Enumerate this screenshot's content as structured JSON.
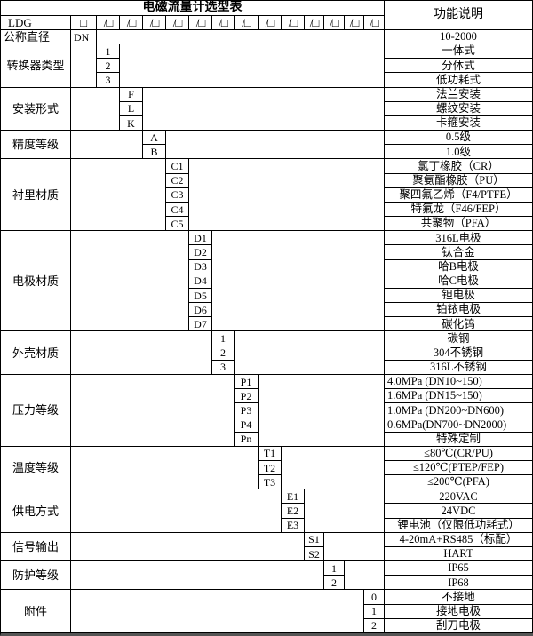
{
  "title": "电磁流量计选型表",
  "function_header": "功能说明",
  "header_row": {
    "model_prefix": "LDG",
    "box_glyph": "□",
    "slash_box_glyph": "/□",
    "slash_box_count": 13
  },
  "groups": [
    {
      "label": "公称直径",
      "label_align": "left",
      "code_col": 2,
      "options": [
        {
          "code": "DN",
          "code_align": "left",
          "desc": "10-2000"
        }
      ]
    },
    {
      "label": "转换器类型",
      "code_col": 3,
      "options": [
        {
          "code": "1",
          "desc": "一体式"
        },
        {
          "code": "2",
          "desc": "分体式"
        },
        {
          "code": "3",
          "desc": "低功耗式"
        }
      ]
    },
    {
      "label": "安装形式",
      "code_col": 4,
      "options": [
        {
          "code": "F",
          "desc": "法兰安装"
        },
        {
          "code": "L",
          "desc": "螺纹安装"
        },
        {
          "code": "K",
          "desc": "卡箍安装"
        }
      ]
    },
    {
      "label": "精度等级",
      "code_col": 5,
      "options": [
        {
          "code": "A",
          "desc": "0.5级"
        },
        {
          "code": "B",
          "desc": "1.0级"
        }
      ]
    },
    {
      "label": "衬里材质",
      "code_col": 6,
      "options": [
        {
          "code": "C1",
          "desc": "氯丁橡胶（CR）"
        },
        {
          "code": "C2",
          "desc": "聚氨酯橡胶（PU）"
        },
        {
          "code": "C3",
          "desc": "聚四氟乙烯（F4/PTFE）"
        },
        {
          "code": "C4",
          "desc": "特氟龙（F46/FEP）"
        },
        {
          "code": "C5",
          "desc": "共聚物（PFA）"
        }
      ]
    },
    {
      "label": "电极材质",
      "code_col": 7,
      "options": [
        {
          "code": "D1",
          "desc": "316L电极"
        },
        {
          "code": "D2",
          "desc": "钛合金"
        },
        {
          "code": "D3",
          "desc": "哈B电极"
        },
        {
          "code": "D4",
          "desc": "哈C电极"
        },
        {
          "code": "D5",
          "desc": "钽电极"
        },
        {
          "code": "D6",
          "desc": "铂铱电极"
        },
        {
          "code": "D7",
          "desc": "碳化钨"
        }
      ]
    },
    {
      "label": "外壳材质",
      "code_col": 8,
      "options": [
        {
          "code": "1",
          "desc": "碳钢"
        },
        {
          "code": "2",
          "desc": "304不锈钢"
        },
        {
          "code": "3",
          "desc": "316L不锈钢"
        }
      ]
    },
    {
      "label": "压力等级",
      "code_col": 9,
      "options": [
        {
          "code": "P1",
          "desc": "4.0MPa (DN10~150)",
          "align": "left"
        },
        {
          "code": "P2",
          "desc": "1.6MPa (DN15~150)",
          "align": "left"
        },
        {
          "code": "P3",
          "desc": "1.0MPa (DN200~DN600)",
          "align": "left"
        },
        {
          "code": "P4",
          "desc": "0.6MPa(DN700~DN2000)",
          "align": "left"
        },
        {
          "code": "Pn",
          "desc": "特殊定制"
        }
      ]
    },
    {
      "label": "温度等级",
      "code_col": 10,
      "options": [
        {
          "code": "T1",
          "desc": "≤80℃(CR/PU)"
        },
        {
          "code": "T2",
          "desc": "≤120℃(PTEP/FEP)"
        },
        {
          "code": "T3",
          "desc": "≤200℃(PFA)"
        }
      ]
    },
    {
      "label": "供电方式",
      "code_col": 11,
      "options": [
        {
          "code": "E1",
          "desc": "220VAC"
        },
        {
          "code": "E2",
          "desc": "24VDC"
        },
        {
          "code": "E3",
          "desc": "锂电池（仅限低功耗式）"
        }
      ]
    },
    {
      "label": "信号输出",
      "code_col": 12,
      "options": [
        {
          "code": "S1",
          "desc": "4-20mA+RS485（标配）"
        },
        {
          "code": "S2",
          "desc": "HART"
        }
      ]
    },
    {
      "label": "防护等级",
      "code_col": 13,
      "options": [
        {
          "code": "1",
          "desc": "IP65"
        },
        {
          "code": "2",
          "desc": "IP68"
        }
      ]
    },
    {
      "label": "附件",
      "code_col": 15,
      "options": [
        {
          "code": "0",
          "desc": "不接地"
        },
        {
          "code": "1",
          "desc": "接地电极"
        },
        {
          "code": "2",
          "desc": "刮刀电极"
        }
      ]
    }
  ]
}
